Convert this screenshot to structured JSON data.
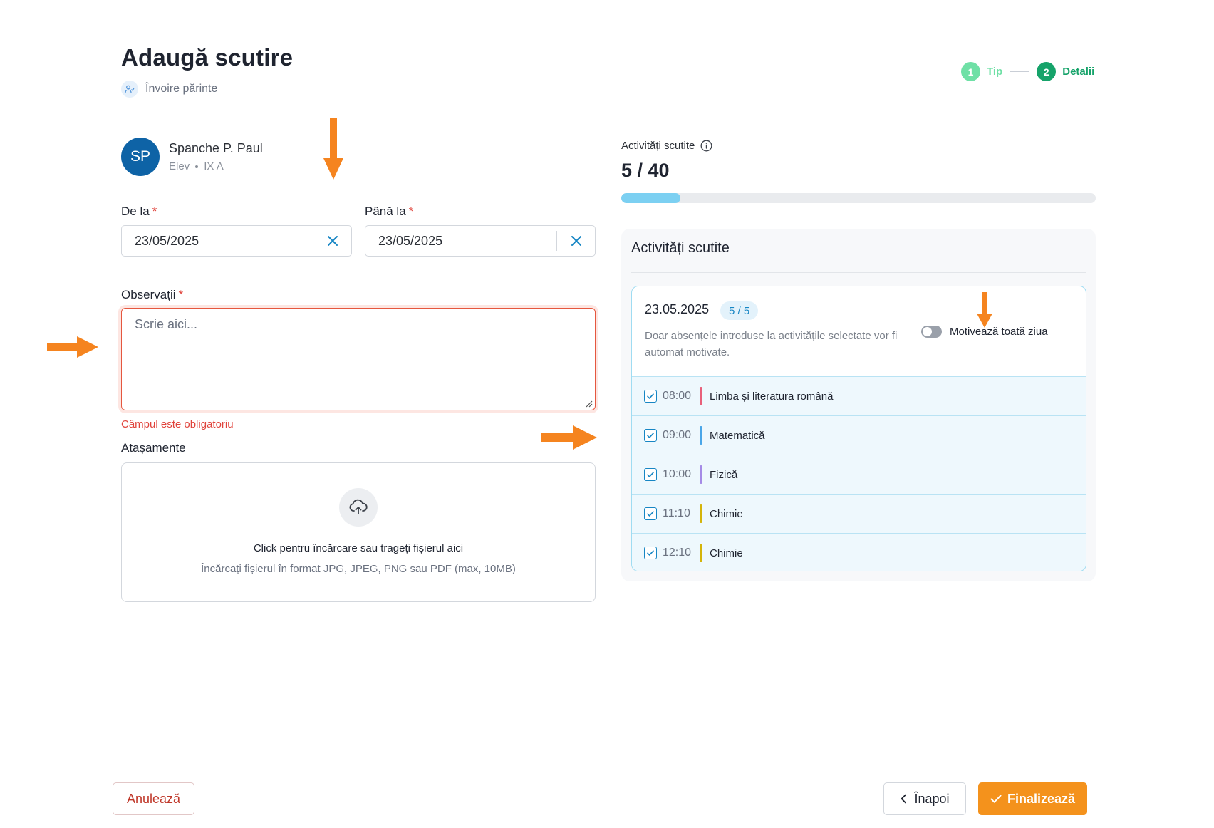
{
  "header": {
    "title": "Adaugă scutire",
    "subtitle": "Învoire părinte"
  },
  "stepper": {
    "steps": [
      {
        "number": "1",
        "label": "Tip"
      },
      {
        "number": "2",
        "label": "Detalii"
      }
    ]
  },
  "student": {
    "initials": "SP",
    "name": "Spanche P. Paul",
    "role": "Elev",
    "class": "IX A"
  },
  "form": {
    "from_label": "De la",
    "from_value": "23/05/2025",
    "to_label": "Până la",
    "to_value": "23/05/2025",
    "required_mark": "*",
    "notes_label": "Observații",
    "notes_placeholder": "Scrie aici...",
    "notes_error": "Câmpul este obligatoriu",
    "attachments_label": "Atașamente",
    "upload_main": "Click pentru încărcare sau trageți fișierul aici",
    "upload_sub": "Încărcați fișierul în format JPG, JPEG, PNG sau PDF (max, 10MB)"
  },
  "activities": {
    "label": "Activități scutite",
    "count_text": "5 / 40",
    "progress_fraction": 0.125,
    "panel_title": "Activități scutite",
    "day": {
      "date": "23.05.2025",
      "badge": "5 / 5",
      "description": "Doar absențele introduse la activitățile selectate vor fi automat motivate.",
      "toggle_label": "Motivează toată ziua",
      "toggle_on": false
    },
    "items": [
      {
        "time": "08:00",
        "subject": "Limba și literatura română",
        "color": "#e8607a",
        "checked": true
      },
      {
        "time": "09:00",
        "subject": "Matematică",
        "color": "#4aa6e8",
        "checked": true
      },
      {
        "time": "10:00",
        "subject": "Fizică",
        "color": "#a58be6",
        "checked": true
      },
      {
        "time": "11:10",
        "subject": "Chimie",
        "color": "#d4b40a",
        "checked": true
      },
      {
        "time": "12:10",
        "subject": "Chimie",
        "color": "#d4b40a",
        "checked": true
      }
    ]
  },
  "footer": {
    "cancel_label": "Anulează",
    "back_label": "Înapoi",
    "finish_label": "Finalizează"
  },
  "colors": {
    "accent": "#f4921c",
    "primary": "#1786c4",
    "success": "#16a36a",
    "error": "#e0433b"
  }
}
